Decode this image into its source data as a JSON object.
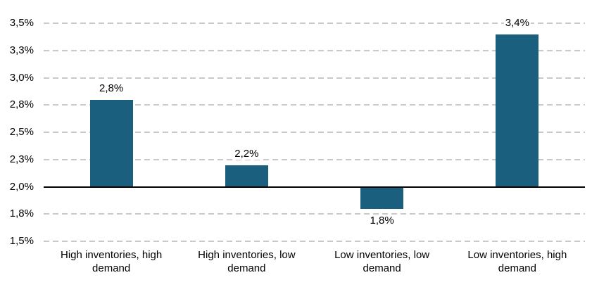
{
  "chart_data": {
    "type": "bar",
    "title": "",
    "xlabel": "",
    "ylabel": "",
    "legend": "none",
    "grid": "horizontal-dashed",
    "decimal_separator": ",",
    "categories": [
      "High inventories, high demand",
      "High inventories, low demand",
      "Low inventories, low demand",
      "Low inventories, high demand"
    ],
    "category_lines": [
      [
        "High inventories, high",
        "demand"
      ],
      [
        "High inventories, low",
        "demand"
      ],
      [
        "Low inventories, low demand"
      ],
      [
        "Low inventories, high",
        "demand"
      ]
    ],
    "values": [
      2.8,
      2.2,
      1.8,
      3.4
    ],
    "value_labels": [
      "2,8%",
      "2,2%",
      "1,8%",
      "3,4%"
    ],
    "baseline_value": 2.0,
    "ylim": [
      1.5,
      3.5
    ],
    "yticks": [
      {
        "value": 3.5,
        "label": "3,5%"
      },
      {
        "value": 3.25,
        "label": "3,3%"
      },
      {
        "value": 3.0,
        "label": "3,0%"
      },
      {
        "value": 2.75,
        "label": "2,8%"
      },
      {
        "value": 2.5,
        "label": "2,5%"
      },
      {
        "value": 2.25,
        "label": "2,3%"
      },
      {
        "value": 2.0,
        "label": "2,0%"
      },
      {
        "value": 1.75,
        "label": "1,8%"
      },
      {
        "value": 1.5,
        "label": "1,5%"
      }
    ],
    "colors": {
      "bar": "#1A5F7E",
      "gridline": "#C9C9C9",
      "baseline": "#000000",
      "text": "#000000",
      "background": "#FFFFFF"
    }
  }
}
